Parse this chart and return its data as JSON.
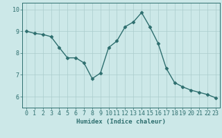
{
  "x": [
    0,
    1,
    2,
    3,
    4,
    5,
    6,
    7,
    8,
    9,
    10,
    11,
    12,
    13,
    14,
    15,
    16,
    17,
    18,
    19,
    20,
    21,
    22,
    23
  ],
  "y": [
    9.0,
    8.9,
    8.85,
    8.75,
    8.25,
    7.78,
    7.78,
    7.55,
    6.83,
    7.08,
    8.25,
    8.55,
    9.2,
    9.42,
    9.85,
    9.2,
    8.45,
    7.3,
    6.65,
    6.45,
    6.3,
    6.2,
    6.1,
    5.95
  ],
  "line_color": "#2d6e6e",
  "marker": "D",
  "markersize": 2.5,
  "linewidth": 1.0,
  "bg_color": "#cce8e8",
  "grid_color": "#aacccc",
  "axis_color": "#2d6e6e",
  "xlabel": "Humidex (Indice chaleur)",
  "xlabel_fontsize": 6.5,
  "tick_fontsize": 6.0,
  "ylim": [
    5.5,
    10.3
  ],
  "xlim": [
    -0.5,
    23.5
  ],
  "yticks": [
    6,
    7,
    8,
    9,
    10
  ],
  "xticks": [
    0,
    1,
    2,
    3,
    4,
    5,
    6,
    7,
    8,
    9,
    10,
    11,
    12,
    13,
    14,
    15,
    16,
    17,
    18,
    19,
    20,
    21,
    22,
    23
  ]
}
